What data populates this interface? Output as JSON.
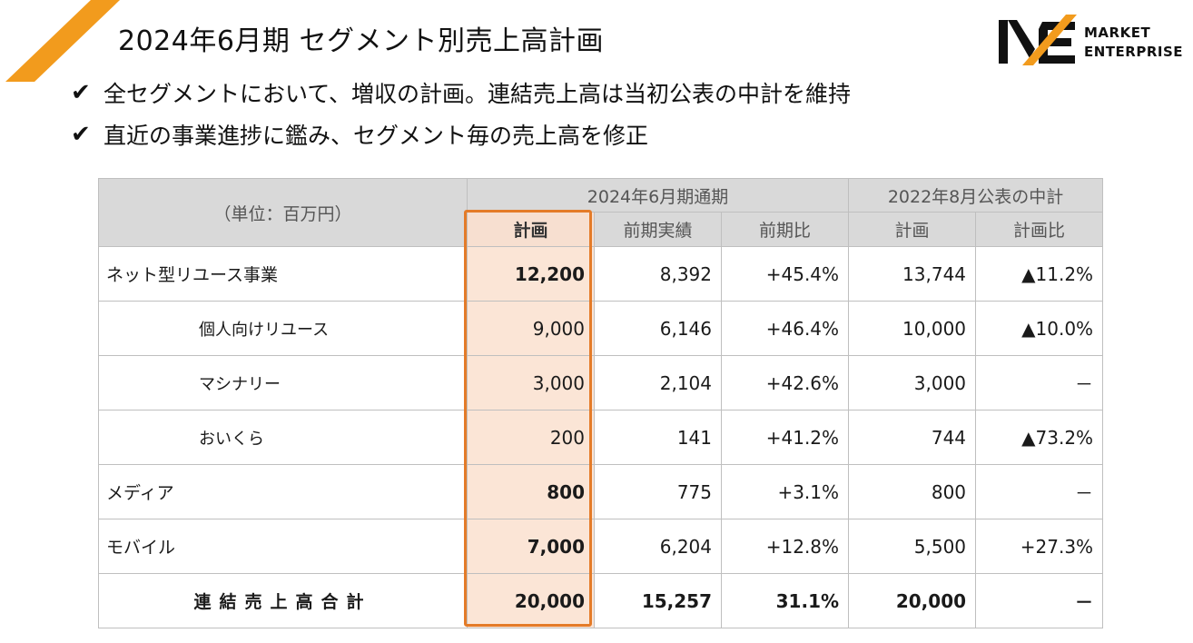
{
  "header": {
    "title": "2024年6月期 セグメント別売上高計画",
    "logo_line1": "MARKET",
    "logo_line2": "ENTERPRISE",
    "accent_color": "#f29b1d"
  },
  "bullets": [
    {
      "mark": "✔",
      "text": "全セグメントにおいて、増収の計画。連結売上高は当初公表の中計を維持"
    },
    {
      "mark": "✔",
      "text": "直近の事業進捗に鑑み、セグメント毎の売上高を修正"
    }
  ],
  "table": {
    "unit_label": "（単位：百万円）",
    "group1": "2024年6月期通期",
    "group2": "2022年8月公表の中計",
    "columns": [
      "計画",
      "前期実績",
      "前期比",
      "計画",
      "計画比"
    ],
    "rows": [
      {
        "name": "ネット型リユース事業",
        "plan": "12,200",
        "prev": "8,392",
        "yoy": "+45.4%",
        "mtp": "13,744",
        "ratio": "▲11.2%"
      },
      {
        "name": "個人向けリユース",
        "plan": "9,000",
        "prev": "6,146",
        "yoy": "+46.4%",
        "mtp": "10,000",
        "ratio": "▲10.0%"
      },
      {
        "name": "マシナリー",
        "plan": "3,000",
        "prev": "2,104",
        "yoy": "+42.6%",
        "mtp": "3,000",
        "ratio": "－"
      },
      {
        "name": "おいくら",
        "plan": "200",
        "prev": "141",
        "yoy": "+41.2%",
        "mtp": "744",
        "ratio": "▲73.2%"
      },
      {
        "name": "メディア",
        "plan": "800",
        "prev": "775",
        "yoy": "+3.1%",
        "mtp": "800",
        "ratio": "－"
      },
      {
        "name": "モバイル",
        "plan": "7,000",
        "prev": "6,204",
        "yoy": "+12.8%",
        "mtp": "5,500",
        "ratio": "+27.3%"
      },
      {
        "name": "連結売上高合計",
        "plan": "20,000",
        "prev": "15,257",
        "yoy": "31.1%",
        "mtp": "20,000",
        "ratio": "－"
      }
    ]
  }
}
